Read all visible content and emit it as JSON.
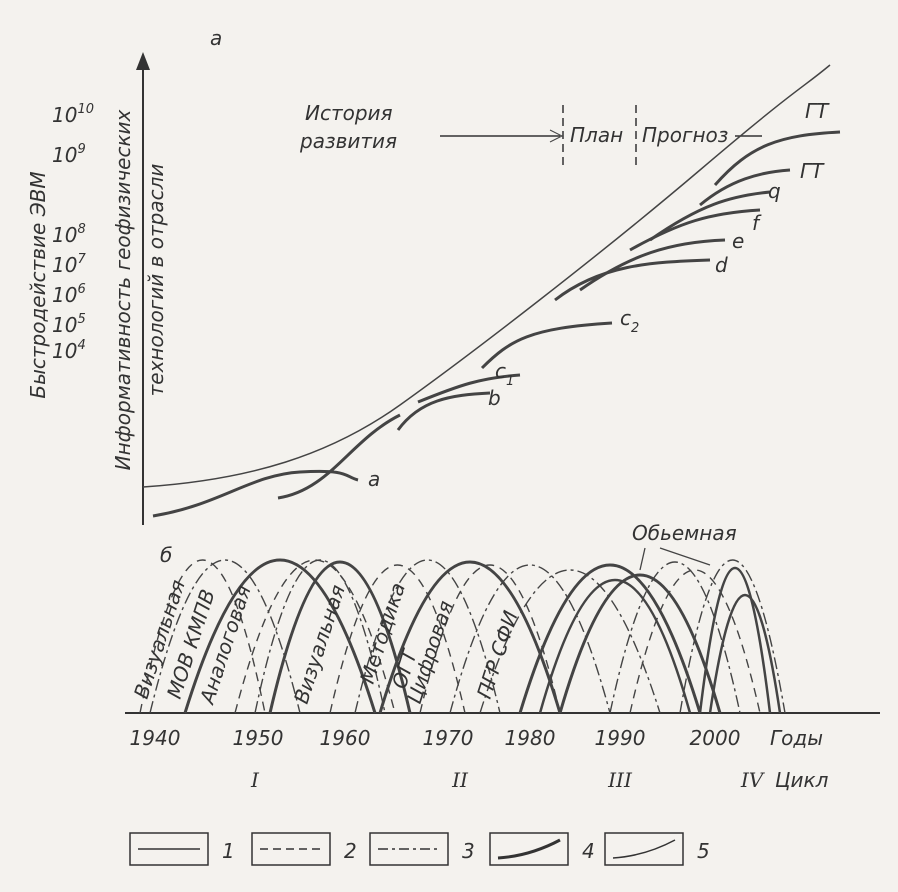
{
  "panel_a": {
    "label": "а",
    "y_axis_outer": "Быстродействие ЭВМ",
    "y_axis_inner": [
      "Информативность геофизических",
      "технологий в отрасли"
    ],
    "y_ticks": [
      {
        "base": "10",
        "exp": "10"
      },
      {
        "base": "10",
        "exp": "9"
      },
      {
        "base": "10",
        "exp": "8"
      },
      {
        "base": "10",
        "exp": "7"
      },
      {
        "base": "10",
        "exp": "6"
      },
      {
        "base": "10",
        "exp": "5"
      },
      {
        "base": "10",
        "exp": "4"
      }
    ],
    "history": [
      "История",
      "развития"
    ],
    "plan": "План",
    "forecast": "Прогноз",
    "gt": [
      "ГТ",
      "ГТ"
    ],
    "curves": [
      {
        "text": "a"
      },
      {
        "text": "b"
      },
      {
        "text": "c",
        "sub": "1"
      },
      {
        "text": "c",
        "sub": "2"
      },
      {
        "text": "d"
      },
      {
        "text": "e"
      },
      {
        "text": "f"
      },
      {
        "text": "q"
      }
    ]
  },
  "panel_b": {
    "label": "б",
    "methods": [
      "Визуальная",
      "МОВ КМПВ",
      "Аналоговая",
      "Визуальная",
      "Методика",
      "ОГТ",
      "Цифровая",
      "ПГР СФИ"
    ],
    "volume": "Обьемная",
    "years": [
      "1940",
      "1950",
      "1960",
      "1970",
      "1980",
      "1990",
      "2000"
    ],
    "years_label": "Годы",
    "cycles": [
      "I",
      "II",
      "III",
      "IV"
    ],
    "cycle_label": "Цикл"
  },
  "legend": [
    "1",
    "2",
    "3",
    "4",
    "5"
  ]
}
